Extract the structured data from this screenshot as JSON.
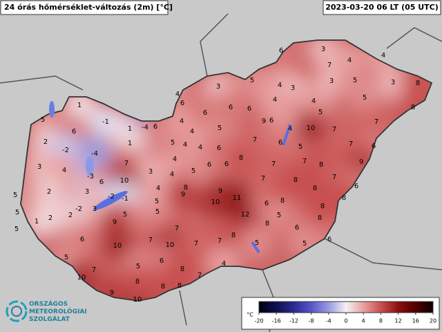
{
  "header": {
    "title": "24 órás hőmérséklet-változás (2m) [°C]",
    "timestamp": "2023-03-20 06 LT (05 UTC)"
  },
  "logo": [
    "ORSZÁGOS",
    "METEOROLÓGIAI",
    "SZOLGÁLAT"
  ],
  "colorbar": {
    "unit": "°C",
    "ticks": [
      -20,
      -16,
      -12,
      -8,
      -4,
      0,
      4,
      8,
      12,
      16,
      20
    ],
    "colors": [
      "#000010",
      "#101050",
      "#2a2a90",
      "#5555c8",
      "#9a9ae0",
      "#f4f0f4",
      "#e8a0a0",
      "#c85050",
      "#8a1010",
      "#500000",
      "#100000"
    ]
  },
  "stations": [
    1,
    5,
    -1,
    6,
    1,
    -4,
    6,
    2,
    -2,
    1,
    -4,
    3,
    4,
    7,
    -3,
    6,
    3,
    10,
    2,
    5,
    3,
    -2,
    -1,
    -2,
    2,
    3,
    2,
    1,
    5,
    5,
    5,
    6,
    9,
    5,
    7,
    5,
    4,
    7,
    10,
    10,
    5,
    7,
    10,
    5,
    6,
    7,
    7,
    9,
    10,
    8,
    8,
    8,
    7,
    8,
    3,
    4,
    6,
    4,
    4,
    6,
    5,
    4,
    4,
    4,
    5,
    4,
    6,
    8,
    6,
    5,
    9,
    6,
    8,
    9,
    10,
    11,
    12,
    8,
    5,
    6,
    6,
    9,
    7,
    6,
    4,
    3,
    6,
    4,
    4,
    5,
    6,
    4,
    5,
    7,
    3,
    4,
    3,
    5,
    5,
    3,
    4,
    8,
    8,
    7,
    7,
    7,
    6,
    10,
    9,
    7,
    7,
    7,
    8,
    7,
    8,
    8,
    6,
    8,
    6,
    8,
    8,
    5,
    8,
    8,
    6,
    6,
    5,
    5,
    4
  ]
}
